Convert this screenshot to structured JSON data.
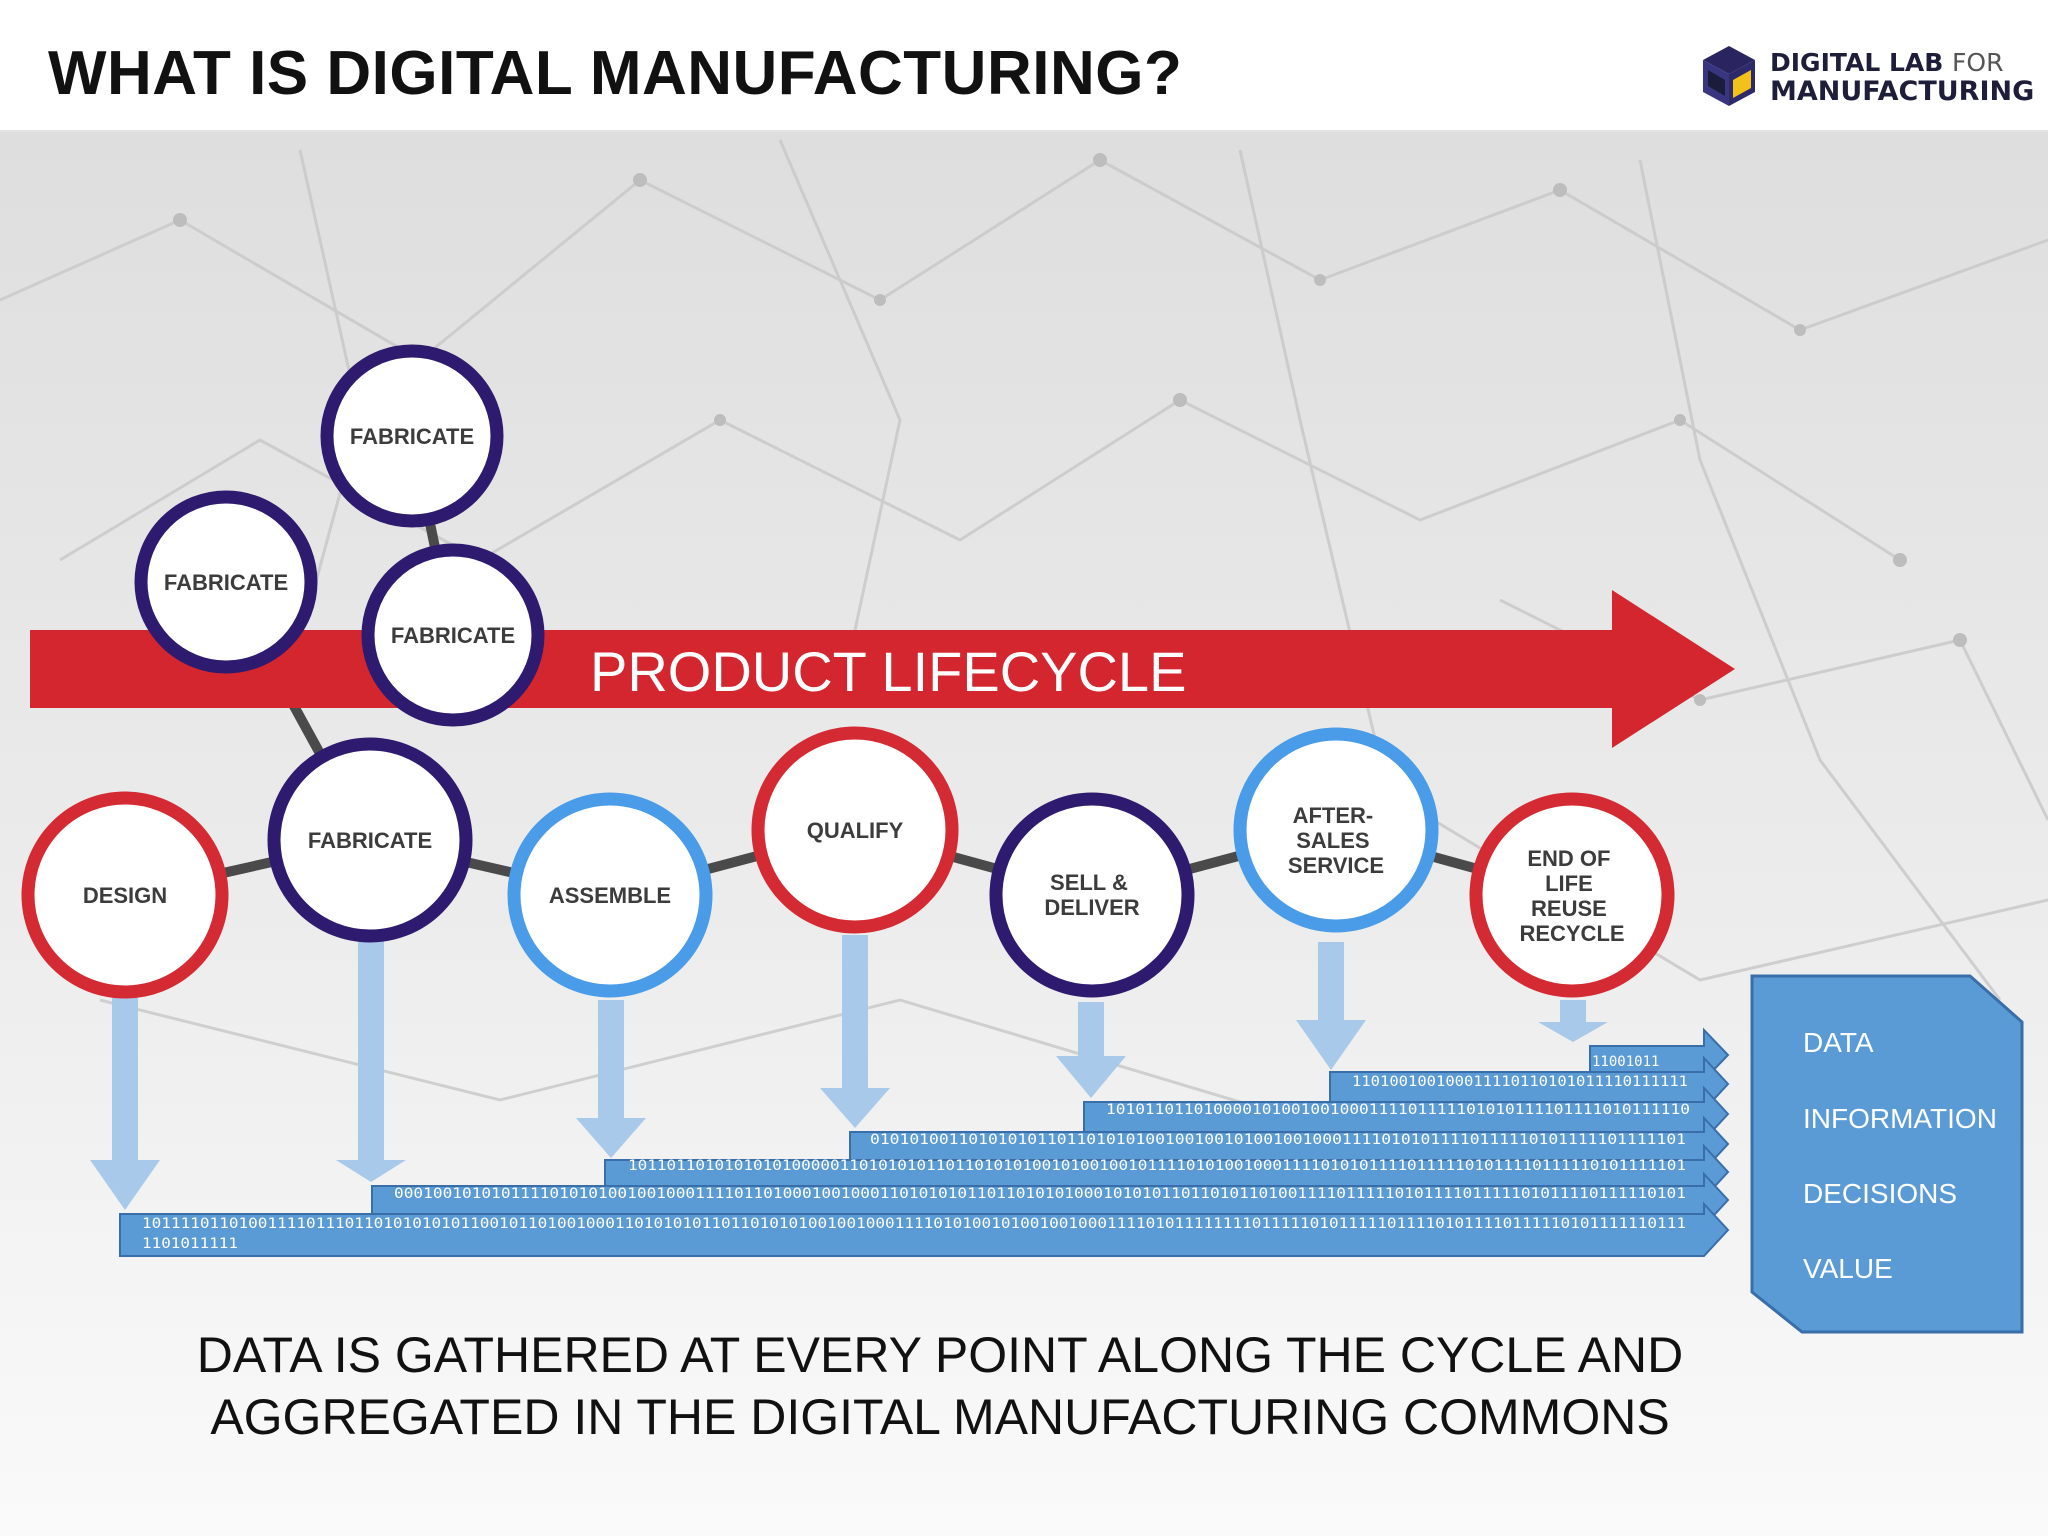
{
  "header": {
    "title": "WHAT IS DIGITAL MANUFACTURING?",
    "logo": {
      "line1_bold": "DIGITAL LAB",
      "line1_thin": "FOR",
      "line2": "MANUFACTURING"
    }
  },
  "arrow": {
    "label": "PRODUCT LIFECYCLE"
  },
  "stages": {
    "design": [
      "DESIGN"
    ],
    "fabricate": [
      "FABRICATE"
    ],
    "fabricate_top": [
      "FABRICATE"
    ],
    "fabricate_left": [
      "FABRICATE"
    ],
    "fabricate_mid": [
      "FABRICATE"
    ],
    "assemble": [
      "ASSEMBLE"
    ],
    "qualify": [
      "QUALIFY"
    ],
    "sell_deliver": [
      "SELL &",
      "DELIVER"
    ],
    "after_sales": [
      "AFTER-",
      "SALES",
      "SERVICE"
    ],
    "end_of_life": [
      "END OF",
      "LIFE",
      "REUSE",
      "RECYCLE"
    ]
  },
  "colors": {
    "red": "#d42a33",
    "blue": "#4a9ce8",
    "purple": "#2e1a6e",
    "data_blue": "#5b9bd5",
    "arrow_red": "#d3262f"
  },
  "data_streams": [
    "11001011",
    "110100100100011110110101011110111111",
    "101011011010000101001001000111101111101010111101111010111110",
    "01010100110101010110110101010010010010100100100011110101011110111110101111101111101",
    "10110110101010101000001101010101101101010100101001001011110101001000111101010111101111101011110111110101111101",
    "0001001010101111010101001001000111101101000100100011010101011011010101000101010110110101101001111011111010111101111101011110111110101",
    "1011110110100111101110110101010101100101101001000110101010110110101010010010001111010100101001001000111101011111111011111010111110111101011110111110101111110111",
    "1101011111"
  ],
  "aggregate": {
    "items": [
      "DATA",
      "INFORMATION",
      "DECISIONS",
      "VALUE"
    ]
  },
  "caption": {
    "line1": "DATA IS GATHERED AT EVERY POINT ALONG THE CYCLE AND",
    "line2": "AGGREGATED IN THE DIGITAL MANUFACTURING COMMONS"
  }
}
